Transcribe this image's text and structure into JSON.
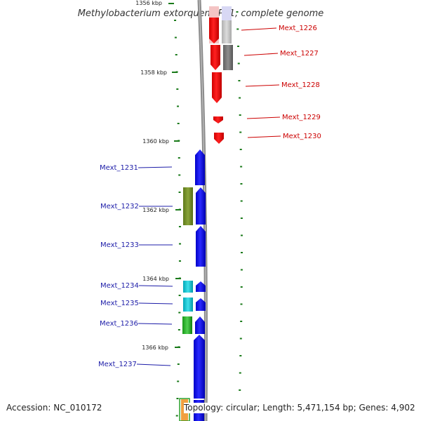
{
  "title": "Methylobacterium extorquens PA1, complete genome",
  "footer": {
    "accession": "Accession: NC_010172",
    "topology": "Topology: circular; Length: 5,471,154 bp; Genes: 4,902"
  },
  "colors": {
    "forward_gene": "#0000ff",
    "reverse_gene": "#ff0000",
    "forward_label": "#1c1ca8",
    "reverse_label": "#cc0000",
    "backbone": "#808080",
    "tick": "#1a7a1a"
  },
  "ruler": [
    {
      "label": "1356 kbp"
    },
    {
      "label": "1358 kbp"
    },
    {
      "label": "1360 kbp"
    },
    {
      "label": "1362 kbp"
    },
    {
      "label": "1364 kbp"
    },
    {
      "label": "1366 kbp"
    }
  ],
  "genes_reverse": [
    {
      "name": "Mext_1226"
    },
    {
      "name": "Mext_1227"
    },
    {
      "name": "Mext_1228"
    },
    {
      "name": "Mext_1229"
    },
    {
      "name": "Mext_1230"
    }
  ],
  "genes_forward": [
    {
      "name": "Mext_1231"
    },
    {
      "name": "Mext_1232"
    },
    {
      "name": "Mext_1233"
    },
    {
      "name": "Mext_1234"
    },
    {
      "name": "Mext_1235"
    },
    {
      "name": "Mext_1236"
    },
    {
      "name": "Mext_1237"
    }
  ]
}
